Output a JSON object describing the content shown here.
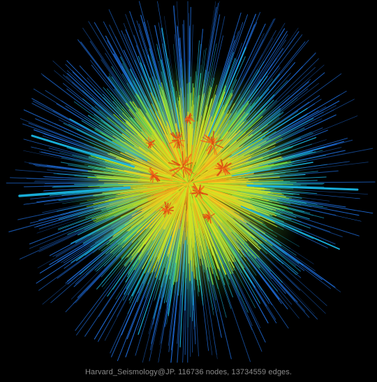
{
  "caption": "Harvard_Seismology@JP. 116736 nodes, 13734559 edges.",
  "colors": {
    "background": "#000000",
    "caption": "#8a8a8a",
    "edge_palette": [
      "#d94a10",
      "#f06a1a",
      "#f5a21c",
      "#f0d420",
      "#c8e626",
      "#7fe22e",
      "#2fd35a",
      "#1ec7a8",
      "#19b4e0",
      "#1f6fe0"
    ]
  }
}
